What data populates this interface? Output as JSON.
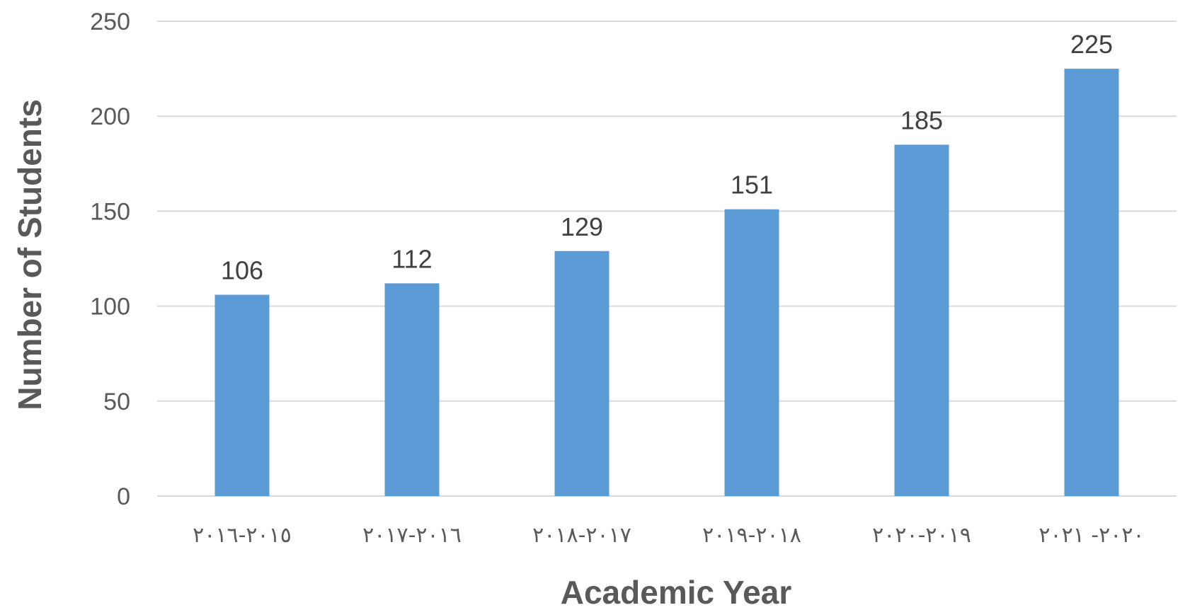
{
  "chart_data": {
    "type": "bar",
    "title": "",
    "xlabel": "Academic Year",
    "ylabel": "Number of Students",
    "categories": [
      "٢٠١٦-٢٠١٥",
      "٢٠١٧-٢٠١٦",
      "٢٠١٨-٢٠١٧",
      "٢٠١٩-٢٠١٨",
      "٢٠٢٠-٢٠١٩",
      "٢٠٢١ -٢٠٢٠"
    ],
    "values": [
      106,
      112,
      129,
      151,
      185,
      225
    ],
    "data_labels": [
      "106",
      "112",
      "129",
      "151",
      "185",
      "225"
    ],
    "ylim": [
      0,
      250
    ],
    "yticks": [
      "0",
      "50",
      "100",
      "150",
      "200",
      "250"
    ],
    "grid": true,
    "legend": "none",
    "bar_color": "#5b9bd5",
    "grid_color": "#d9d9d9"
  }
}
